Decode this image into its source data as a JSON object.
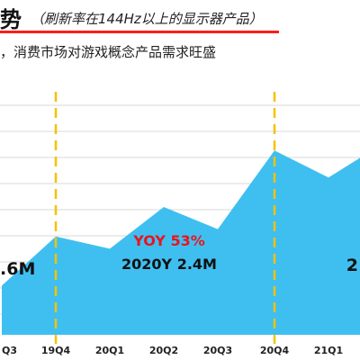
{
  "header": {
    "title": "势",
    "subtitle": "（刷新率在144Hz以上的显示器产品）",
    "desc": "，消费市场对游戏概念产品需求旺盛"
  },
  "colors": {
    "area": "#3fbff0",
    "grid": "#d9d9d9",
    "divider": "#f5c200",
    "underline": "#ff1a1a",
    "yoy": "#e8141e"
  },
  "chart_data": {
    "type": "area",
    "categories": [
      "Q3",
      "19Q4",
      "20Q1",
      "20Q2",
      "20Q3",
      "20Q4",
      "21Q1",
      ""
    ],
    "values": [
      1.0,
      2.0,
      1.75,
      2.6,
      2.15,
      3.75,
      3.2,
      3.6
    ],
    "ylim": [
      0,
      5.2
    ],
    "grid": true,
    "dividers_after": [
      "19Q4",
      "20Q4"
    ],
    "annotations": [
      {
        "id": "left_total",
        "text": ".6M"
      },
      {
        "id": "yoy",
        "text": "YOY 53%"
      },
      {
        "id": "year_2020",
        "text": "2020Y 2.4M"
      },
      {
        "id": "right_total",
        "text": "2"
      }
    ]
  }
}
